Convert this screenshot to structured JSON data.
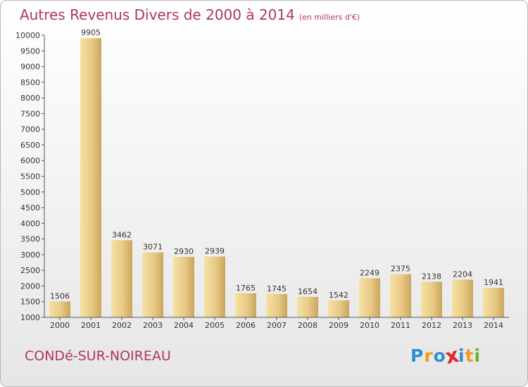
{
  "title": "Autres Revenus Divers de 2000 à 2014",
  "unit_note": "(en milliers d'€)",
  "commune": "CONDé-SUR-NOIREAU",
  "logo": {
    "letters": [
      "P",
      "r",
      "o",
      "x",
      "i",
      "t",
      "i"
    ],
    "colors": [
      "#2f8fd1",
      "#f39a1f",
      "#2f8fd1",
      "#e3262d",
      "#2f8fd1",
      "#f39a1f",
      "#6cb52d"
    ]
  },
  "colors": {
    "title": "#b1365a",
    "bar_light": "#f6e2a2",
    "bar_dark": "#c9a65c",
    "axis": "#333333"
  },
  "chart_data": {
    "type": "bar",
    "categories": [
      "2000",
      "2001",
      "2002",
      "2003",
      "2004",
      "2005",
      "2006",
      "2007",
      "2008",
      "2009",
      "2010",
      "2011",
      "2012",
      "2013",
      "2014"
    ],
    "values": [
      1506,
      9905,
      3462,
      3071,
      2930,
      2939,
      1765,
      1745,
      1654,
      1542,
      2249,
      2375,
      2138,
      2204,
      1941
    ],
    "ylim": [
      1000,
      10000
    ],
    "yticks": [
      1000,
      1500,
      2000,
      2500,
      3000,
      3500,
      4000,
      4500,
      5000,
      5500,
      6000,
      6500,
      7000,
      7500,
      8000,
      8500,
      9000,
      9500,
      10000
    ],
    "xlabel": "",
    "ylabel": "",
    "grid": false,
    "legend": "none"
  }
}
